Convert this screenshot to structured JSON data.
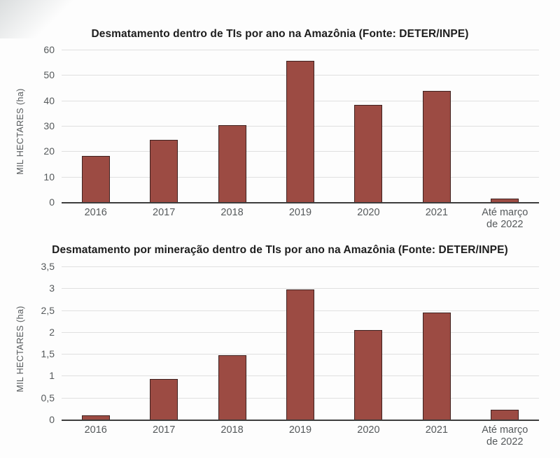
{
  "page": {
    "background": "#fdfdfd"
  },
  "colors": {
    "bar_fill": "#9c4b43",
    "bar_border": "#3f2220",
    "gridline": "#e0e0e0",
    "axis_line": "#3d3d3d",
    "title_text": "#1d1d1d",
    "tick_text": "#55595b"
  },
  "chart_data": [
    {
      "type": "bar",
      "title": "Desmatamento dentro de TIs por ano na Amazônia (Fonte: DETER/INPE)",
      "ylabel": "MIL HECTARES (ha)",
      "xlabel": "",
      "ylim": [
        0,
        60
      ],
      "grid": true,
      "legend": false,
      "categories": [
        "2016",
        "2017",
        "2018",
        "2019",
        "2020",
        "2021",
        "Até março\nde 2022"
      ],
      "values": [
        18.2,
        24.6,
        30.3,
        55.5,
        38.3,
        43.8,
        1.4
      ],
      "y_ticks": [
        {
          "value": 60,
          "label": "60"
        },
        {
          "value": 50,
          "label": "50"
        },
        {
          "value": 40,
          "label": "40"
        },
        {
          "value": 30,
          "label": "30"
        },
        {
          "value": 20,
          "label": "20"
        },
        {
          "value": 10,
          "label": "10"
        },
        {
          "value": 0,
          "label": "0"
        }
      ]
    },
    {
      "type": "bar",
      "title": "Desmatamento por mineração dentro de TIs por ano na Amazônia (Fonte: DETER/INPE)",
      "ylabel": "MIL HECTARES (ha)",
      "xlabel": "",
      "ylim": [
        0,
        3.5
      ],
      "grid": true,
      "legend": false,
      "categories": [
        "2016",
        "2017",
        "2018",
        "2019",
        "2020",
        "2021",
        "Até março\nde 2022"
      ],
      "values": [
        0.09,
        0.92,
        1.47,
        2.97,
        2.04,
        2.45,
        0.22
      ],
      "y_ticks": [
        {
          "value": 3.5,
          "label": "3,5"
        },
        {
          "value": 3,
          "label": "3"
        },
        {
          "value": 2.5,
          "label": "2,5"
        },
        {
          "value": 2,
          "label": "2"
        },
        {
          "value": 1.5,
          "label": "1,5"
        },
        {
          "value": 1,
          "label": "1"
        },
        {
          "value": 0.5,
          "label": "0,5"
        },
        {
          "value": 0,
          "label": "0"
        }
      ]
    }
  ]
}
